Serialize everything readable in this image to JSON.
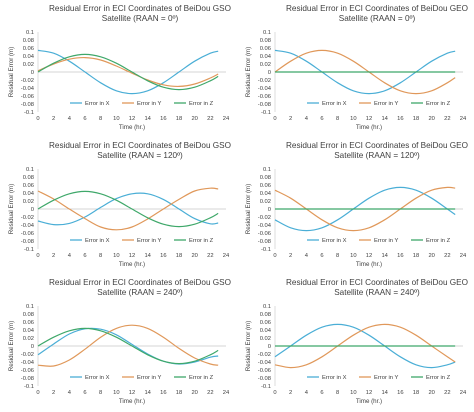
{
  "chart_data": [
    {
      "type": "line",
      "title": [
        "Residual Error in ECI Coordinates of BeiDou GSO",
        "Satellite (RAAN = 0º)"
      ],
      "xlabel": "Time (hr.)",
      "ylabel": "Residual Error (m)",
      "xlim": [
        0,
        24
      ],
      "ylim": [
        -0.1,
        0.1
      ],
      "xticks": [
        "0",
        "2",
        "4",
        "6",
        "8",
        "10",
        "12",
        "14",
        "16",
        "18",
        "20",
        "22",
        "24"
      ],
      "yticks": [
        "-0.1",
        "-0.08",
        "-0.06",
        "-0.04",
        "-0.02",
        "0",
        "0.02",
        "0.04",
        "0.06",
        "0.08",
        "0.1"
      ],
      "legend": "bottom-inside",
      "x": [
        0,
        2,
        4,
        6,
        8,
        10,
        12,
        14,
        16,
        18,
        20,
        22,
        23
      ],
      "series": [
        {
          "name": "Error in X",
          "values": [
            0.054,
            0.047,
            0.027,
            0.0,
            -0.027,
            -0.047,
            -0.054,
            -0.047,
            -0.027,
            0.0,
            0.027,
            0.047,
            0.052
          ]
        },
        {
          "name": "Error in Y",
          "values": [
            0.003,
            0.02,
            0.032,
            0.036,
            0.03,
            0.015,
            -0.003,
            -0.02,
            -0.032,
            -0.036,
            -0.03,
            -0.015,
            -0.005
          ]
        },
        {
          "name": "Error in Z",
          "values": [
            0.0,
            0.022,
            0.038,
            0.044,
            0.038,
            0.022,
            0.0,
            -0.022,
            -0.038,
            -0.044,
            -0.038,
            -0.022,
            -0.011
          ]
        }
      ]
    },
    {
      "type": "line",
      "title": [
        "Residual Error in ECI Coordinates of BeiDou GEO",
        "Satellite (RAAN = 0º)"
      ],
      "xlabel": "Time (hr.)",
      "ylabel": "Residual Error (m)",
      "xlim": [
        0,
        24
      ],
      "ylim": [
        -0.1,
        0.1
      ],
      "xticks": [
        "0",
        "2",
        "4",
        "6",
        "8",
        "10",
        "12",
        "14",
        "16",
        "18",
        "20",
        "22",
        "24"
      ],
      "yticks": [
        "-0.1",
        "-0.08",
        "-0.06",
        "-0.04",
        "-0.02",
        "0",
        "0.02",
        "0.04",
        "0.06",
        "0.08",
        "0.1"
      ],
      "legend": "bottom-inside",
      "x": [
        0,
        2,
        4,
        6,
        8,
        10,
        12,
        14,
        16,
        18,
        20,
        22,
        23
      ],
      "series": [
        {
          "name": "Error in X",
          "values": [
            0.054,
            0.047,
            0.027,
            0.0,
            -0.027,
            -0.047,
            -0.054,
            -0.047,
            -0.027,
            0.0,
            0.027,
            0.047,
            0.052
          ]
        },
        {
          "name": "Error in Y",
          "values": [
            0.0,
            0.027,
            0.047,
            0.054,
            0.047,
            0.027,
            0.0,
            -0.027,
            -0.047,
            -0.054,
            -0.047,
            -0.027,
            -0.014
          ]
        },
        {
          "name": "Error in Z",
          "values": [
            0,
            0,
            0,
            0,
            0,
            0,
            0,
            0,
            0,
            0,
            0,
            0,
            0
          ]
        }
      ]
    },
    {
      "type": "line",
      "title": [
        "Residual Error in ECI Coordinates of BeiDou GSO",
        "Satellite (RAAN = 120º)"
      ],
      "xlabel": "Time (hr.)",
      "ylabel": "Residual Error (m)",
      "xlim": [
        0,
        24
      ],
      "ylim": [
        -0.1,
        0.1
      ],
      "xticks": [
        "0",
        "2",
        "4",
        "6",
        "8",
        "10",
        "12",
        "14",
        "16",
        "18",
        "20",
        "22",
        "24"
      ],
      "yticks": [
        "-0.1",
        "-0.08",
        "-0.06",
        "-0.04",
        "-0.02",
        "0",
        "0.02",
        "0.04",
        "0.06",
        "0.08",
        "0.1"
      ],
      "legend": "bottom-inside",
      "x": [
        0,
        2,
        4,
        6,
        8,
        10,
        12,
        14,
        16,
        18,
        20,
        22,
        23
      ],
      "series": [
        {
          "name": "Error in X",
          "values": [
            -0.03,
            -0.039,
            -0.036,
            -0.02,
            0.004,
            0.026,
            0.038,
            0.038,
            0.024,
            0.0,
            -0.024,
            -0.037,
            -0.035
          ]
        },
        {
          "name": "Error in Y",
          "values": [
            0.045,
            0.025,
            0.0,
            -0.024,
            -0.045,
            -0.052,
            -0.045,
            -0.025,
            0.0,
            0.024,
            0.045,
            0.052,
            0.05
          ]
        },
        {
          "name": "Error in Z",
          "values": [
            0.0,
            0.022,
            0.038,
            0.044,
            0.038,
            0.022,
            0.0,
            -0.022,
            -0.038,
            -0.044,
            -0.038,
            -0.022,
            -0.011
          ]
        }
      ]
    },
    {
      "type": "line",
      "title": [
        "Residual Error in ECI Coordinates of BeiDou GEO",
        "Satellite (RAAN = 120º)"
      ],
      "xlabel": "Time (hr.)",
      "ylabel": "Residual Error (m)",
      "xlim": [
        0,
        24
      ],
      "ylim": [
        -0.1,
        0.1
      ],
      "xticks": [
        "0",
        "2",
        "4",
        "6",
        "8",
        "10",
        "12",
        "14",
        "16",
        "18",
        "20",
        "22",
        "24"
      ],
      "yticks": [
        "-0.1",
        "-0.08",
        "-0.06",
        "-0.04",
        "-0.02",
        "0",
        "0.02",
        "0.04",
        "0.06",
        "0.08",
        "0.1"
      ],
      "legend": "bottom-inside",
      "x": [
        0,
        2,
        4,
        6,
        8,
        10,
        12,
        14,
        16,
        18,
        20,
        22,
        23
      ],
      "series": [
        {
          "name": "Error in X",
          "values": [
            -0.027,
            -0.047,
            -0.054,
            -0.047,
            -0.027,
            0.0,
            0.027,
            0.047,
            0.054,
            0.047,
            0.027,
            0.0,
            -0.014
          ]
        },
        {
          "name": "Error in Y",
          "values": [
            0.047,
            0.027,
            0.0,
            -0.027,
            -0.047,
            -0.054,
            -0.047,
            -0.027,
            0.0,
            0.027,
            0.047,
            0.054,
            0.052
          ]
        },
        {
          "name": "Error in Z",
          "values": [
            0,
            0,
            0,
            0,
            0,
            0,
            0,
            0,
            0,
            0,
            0,
            0,
            0
          ]
        }
      ]
    },
    {
      "type": "line",
      "title": [
        "Residual Error in ECI Coordinates of BeiDou GSO",
        "Satellite (RAAN = 240º)"
      ],
      "xlabel": "Time (hr.)",
      "ylabel": "Residual Error (m)",
      "xlim": [
        0,
        24
      ],
      "ylim": [
        -0.1,
        0.1
      ],
      "xticks": [
        "0",
        "2",
        "4",
        "6",
        "8",
        "10",
        "12",
        "14",
        "16",
        "18",
        "20",
        "22",
        "24"
      ],
      "yticks": [
        "-0.1",
        "-0.08",
        "-0.06",
        "-0.04",
        "-0.02",
        "0",
        "0.02",
        "0.04",
        "0.06",
        "0.08",
        "0.1"
      ],
      "legend": "bottom-inside",
      "x": [
        0,
        2,
        4,
        6,
        8,
        10,
        12,
        14,
        16,
        18,
        20,
        22,
        23
      ],
      "series": [
        {
          "name": "Error in X",
          "values": [
            -0.022,
            0.005,
            0.03,
            0.043,
            0.042,
            0.028,
            0.004,
            -0.02,
            -0.038,
            -0.045,
            -0.04,
            -0.028,
            -0.025
          ]
        },
        {
          "name": "Error in Y",
          "values": [
            -0.048,
            -0.05,
            -0.035,
            -0.008,
            0.022,
            0.044,
            0.052,
            0.044,
            0.022,
            -0.006,
            -0.03,
            -0.045,
            -0.048
          ]
        },
        {
          "name": "Error in Z",
          "values": [
            0.0,
            0.022,
            0.038,
            0.044,
            0.038,
            0.022,
            0.0,
            -0.022,
            -0.038,
            -0.044,
            -0.038,
            -0.022,
            -0.011
          ]
        }
      ]
    },
    {
      "type": "line",
      "title": [
        "Residual Error in ECI Coordinates of BeiDou GEO",
        "Satellite (RAAN = 240º)"
      ],
      "xlabel": "Time (hr.)",
      "ylabel": "Residual Error (m)",
      "xlim": [
        0,
        24
      ],
      "ylim": [
        -0.1,
        0.1
      ],
      "xticks": [
        "0",
        "2",
        "4",
        "6",
        "8",
        "10",
        "12",
        "14",
        "16",
        "18",
        "20",
        "22",
        "24"
      ],
      "yticks": [
        "-0.1",
        "-0.08",
        "-0.06",
        "-0.04",
        "-0.02",
        "0",
        "0.02",
        "0.04",
        "0.06",
        "0.08",
        "0.1"
      ],
      "legend": "bottom-inside",
      "x": [
        0,
        2,
        4,
        6,
        8,
        10,
        12,
        14,
        16,
        18,
        20,
        22,
        23
      ],
      "series": [
        {
          "name": "Error in X",
          "values": [
            -0.027,
            0.0,
            0.027,
            0.047,
            0.054,
            0.047,
            0.027,
            0.0,
            -0.027,
            -0.047,
            -0.054,
            -0.047,
            -0.04
          ]
        },
        {
          "name": "Error in Y",
          "values": [
            -0.047,
            -0.054,
            -0.047,
            -0.027,
            0.0,
            0.027,
            0.047,
            0.054,
            0.047,
            0.027,
            0.0,
            -0.027,
            -0.04
          ]
        },
        {
          "name": "Error in Z",
          "values": [
            0,
            0,
            0,
            0,
            0,
            0,
            0,
            0,
            0,
            0,
            0,
            0,
            0
          ]
        }
      ]
    }
  ],
  "colors": {
    "series": [
      "#4aaed6",
      "#e0985a",
      "#3fa86a"
    ],
    "axis": "#c8c8c8",
    "text": "#404040"
  }
}
